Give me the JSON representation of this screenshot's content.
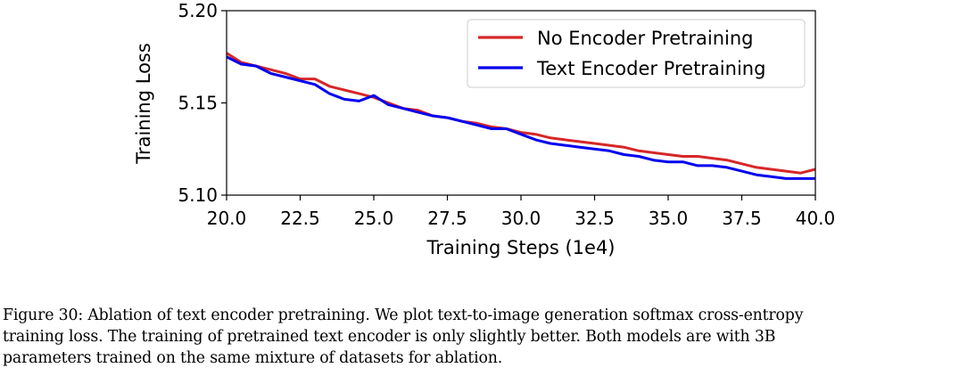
{
  "chart_data": {
    "type": "line",
    "title": "",
    "xlabel": "Training Steps (1e4)",
    "ylabel": "Training Loss",
    "xlim": [
      20.0,
      40.0
    ],
    "ylim": [
      5.1,
      5.2
    ],
    "x_ticks": [
      "20.0",
      "22.5",
      "25.0",
      "27.5",
      "30.0",
      "32.5",
      "35.0",
      "37.5",
      "40.0"
    ],
    "x_tick_values": [
      20.0,
      22.5,
      25.0,
      27.5,
      30.0,
      32.5,
      35.0,
      37.5,
      40.0
    ],
    "y_ticks": [
      "5.10",
      "5.15",
      "5.20"
    ],
    "y_tick_values": [
      5.1,
      5.15,
      5.2
    ],
    "legend_position": "top-right",
    "series": [
      {
        "name": "No Encoder Pretraining",
        "color": "#d62728",
        "x": [
          20.0,
          20.5,
          21.0,
          21.5,
          22.0,
          22.5,
          23.0,
          23.5,
          24.0,
          24.5,
          25.0,
          25.5,
          26.0,
          26.5,
          27.0,
          27.5,
          28.0,
          28.5,
          29.0,
          29.5,
          30.0,
          30.5,
          31.0,
          31.5,
          32.0,
          32.5,
          33.0,
          33.5,
          34.0,
          34.5,
          35.0,
          35.5,
          36.0,
          36.5,
          37.0,
          37.5,
          38.0,
          38.5,
          39.0,
          39.5,
          40.0
        ],
        "values": [
          5.177,
          5.172,
          5.17,
          5.168,
          5.166,
          5.163,
          5.163,
          5.159,
          5.157,
          5.155,
          5.153,
          5.15,
          5.147,
          5.146,
          5.143,
          5.142,
          5.14,
          5.139,
          5.137,
          5.136,
          5.134,
          5.133,
          5.131,
          5.13,
          5.129,
          5.128,
          5.127,
          5.126,
          5.124,
          5.123,
          5.122,
          5.121,
          5.121,
          5.12,
          5.119,
          5.117,
          5.115,
          5.114,
          5.113,
          5.112,
          5.114
        ]
      },
      {
        "name": "Text Encoder Pretraining",
        "color": "#0000ee",
        "x": [
          20.0,
          20.5,
          21.0,
          21.5,
          22.0,
          22.5,
          23.0,
          23.5,
          24.0,
          24.5,
          25.0,
          25.5,
          26.0,
          26.5,
          27.0,
          27.5,
          28.0,
          28.5,
          29.0,
          29.5,
          30.0,
          30.5,
          31.0,
          31.5,
          32.0,
          32.5,
          33.0,
          33.5,
          34.0,
          34.5,
          35.0,
          35.5,
          36.0,
          36.5,
          37.0,
          37.5,
          38.0,
          38.5,
          39.0,
          39.5,
          40.0
        ],
        "values": [
          5.175,
          5.171,
          5.17,
          5.166,
          5.164,
          5.162,
          5.16,
          5.155,
          5.152,
          5.151,
          5.154,
          5.149,
          5.147,
          5.145,
          5.143,
          5.142,
          5.14,
          5.138,
          5.136,
          5.136,
          5.133,
          5.13,
          5.128,
          5.127,
          5.126,
          5.125,
          5.124,
          5.122,
          5.121,
          5.119,
          5.118,
          5.118,
          5.116,
          5.116,
          5.115,
          5.113,
          5.111,
          5.11,
          5.109,
          5.109,
          5.109
        ]
      }
    ]
  },
  "caption": {
    "lines": [
      "Figure 30: Ablation of text encoder pretraining. We plot text-to-image generation softmax cross-entropy",
      "training loss. The training of pretrained text encoder is only slightly better. Both models are with 3B",
      "parameters trained on the same mixture of datasets for ablation."
    ]
  }
}
